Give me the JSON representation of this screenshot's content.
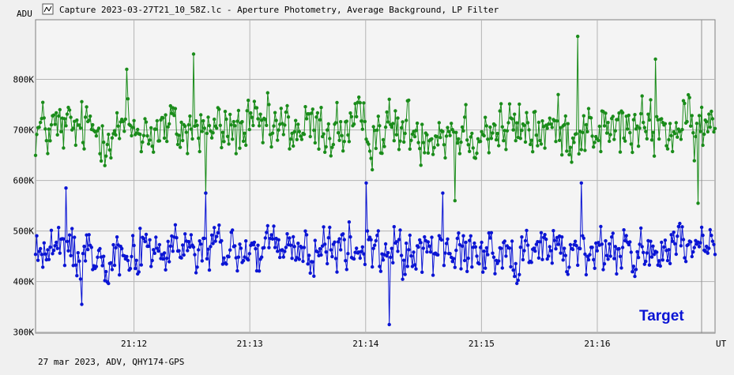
{
  "window": {
    "title": "Capture 2023-03-27T21_10_58Z.lc - Aperture Photometry, Average Background, LP Filter",
    "icon": "lightcurve-icon"
  },
  "footer": {
    "caption": "27 mar 2023, ADV, QHY174-GPS"
  },
  "colors": {
    "comparison": "#1a8c1a",
    "target": "#0a14d4",
    "grid": "#b4b4b4",
    "background": "#f0f0f0",
    "plot_area": "#f4f4f4"
  },
  "chart_data": {
    "type": "line",
    "ylabel": "ADU",
    "xlabel": "UT",
    "y_ticks": [
      300000,
      400000,
      500000,
      600000,
      700000,
      800000
    ],
    "y_tick_labels": [
      "300K",
      "400K",
      "500K",
      "600K",
      "700K",
      "800K"
    ],
    "ylim": [
      298000,
      918000
    ],
    "x_ticks": [
      "21:12",
      "21:13",
      "21:14",
      "21:15",
      "21:16"
    ],
    "x_range": [
      "21:11:09",
      "21:17:01"
    ],
    "annotation": "Target",
    "grid": true,
    "series": [
      {
        "name": "",
        "color": "#1a8c1a",
        "note": "green comparison-star curve, mean ~700K",
        "mean": 700000,
        "amplitude": 70000,
        "samples": 560,
        "values_highlights": [
          {
            "time": "21:11:56",
            "value": 820000
          },
          {
            "time": "21:12:31",
            "value": 850000
          },
          {
            "time": "21:12:37",
            "value": 575000
          },
          {
            "time": "21:14:46",
            "value": 560000
          },
          {
            "time": "21:15:50",
            "value": 885000
          },
          {
            "time": "21:16:30",
            "value": 840000
          },
          {
            "time": "21:16:52",
            "value": 555000
          }
        ]
      },
      {
        "name": "Target",
        "color": "#0a14d4",
        "note": "blue target curve, mean ~460K",
        "mean": 460000,
        "amplitude": 60000,
        "samples": 560,
        "values_highlights": [
          {
            "time": "21:11:25",
            "value": 585000
          },
          {
            "time": "21:11:33",
            "value": 355000
          },
          {
            "time": "21:12:37",
            "value": 575000
          },
          {
            "time": "21:14:00",
            "value": 595000
          },
          {
            "time": "21:14:12",
            "value": 315000
          },
          {
            "time": "21:14:40",
            "value": 575000
          },
          {
            "time": "21:15:52",
            "value": 595000
          }
        ]
      }
    ]
  }
}
